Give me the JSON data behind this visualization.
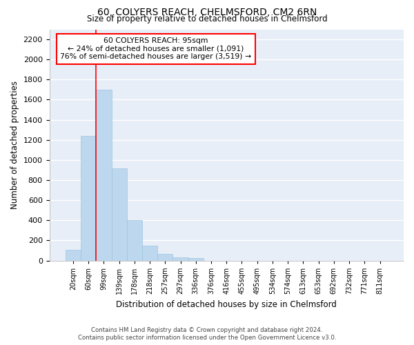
{
  "title": "60, COLYERS REACH, CHELMSFORD, CM2 6RN",
  "subtitle": "Size of property relative to detached houses in Chelmsford",
  "xlabel_bottom": "Distribution of detached houses by size in Chelmsford",
  "ylabel": "Number of detached properties",
  "bar_color": "#bdd7ee",
  "bar_edge_color": "#9ec6e0",
  "categories": [
    "20sqm",
    "60sqm",
    "99sqm",
    "139sqm",
    "178sqm",
    "218sqm",
    "257sqm",
    "297sqm",
    "336sqm",
    "376sqm",
    "416sqm",
    "455sqm",
    "495sqm",
    "534sqm",
    "574sqm",
    "613sqm",
    "653sqm",
    "692sqm",
    "732sqm",
    "771sqm",
    "811sqm"
  ],
  "values": [
    110,
    1240,
    1700,
    920,
    400,
    150,
    65,
    35,
    25,
    0,
    0,
    0,
    0,
    0,
    0,
    0,
    0,
    0,
    0,
    0,
    0
  ],
  "ylim": [
    0,
    2300
  ],
  "yticks": [
    0,
    200,
    400,
    600,
    800,
    1000,
    1200,
    1400,
    1600,
    1800,
    2000,
    2200
  ],
  "property_label": "60 COLYERS REACH: 95sqm",
  "annotation_line1": "← 24% of detached houses are smaller (1,091)",
  "annotation_line2": "76% of semi-detached houses are larger (3,519) →",
  "vline_x_index": 2,
  "background_color": "#e8eef7",
  "grid_color": "#ffffff",
  "footnote1": "Contains HM Land Registry data © Crown copyright and database right 2024.",
  "footnote2": "Contains public sector information licensed under the Open Government Licence v3.0."
}
